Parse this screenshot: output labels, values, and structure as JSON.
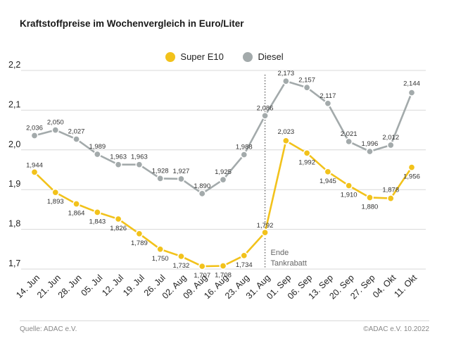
{
  "title": "Kraftstoffpreise im Wochenvergleich in Euro/Liter",
  "footer": {
    "source": "Quelle: ADAC e.V.",
    "copyright": "©ADAC e.V.  10.2022"
  },
  "colors": {
    "super": "#f2c21b",
    "diesel": "#a3aaab",
    "grid": "#d8d8d8",
    "marker_line": "#555555"
  },
  "chart_data": {
    "type": "line",
    "title": "Kraftstoffpreise im Wochenvergleich in Euro/Liter",
    "categories": [
      "14. Jun",
      "21. Jun",
      "28. Jun",
      "05. Jul",
      "12. Jul",
      "19. Jul",
      "26. Jul",
      "02. Aug",
      "09. Aug",
      "16. Aug",
      "23. Aug",
      "31. Aug",
      "01. Sep",
      "06. Sep",
      "13. Sep",
      "20. Sep",
      "27. Sep",
      "04. Okt",
      "11. Okt"
    ],
    "series": [
      {
        "name": "Super E10",
        "values": [
          1.944,
          1.893,
          1.864,
          1.843,
          1.826,
          1.789,
          1.75,
          1.732,
          1.707,
          1.708,
          1.734,
          1.792,
          2.023,
          1.992,
          1.945,
          1.91,
          1.88,
          1.878,
          1.956
        ]
      },
      {
        "name": "Diesel",
        "values": [
          2.036,
          2.05,
          2.027,
          1.989,
          1.963,
          1.963,
          1.928,
          1.927,
          1.89,
          1.925,
          1.988,
          2.086,
          2.173,
          2.157,
          2.117,
          2.021,
          1.996,
          2.012,
          2.144
        ]
      }
    ],
    "yticks": [
      "1,7",
      "1,8",
      "1,9",
      "2,0",
      "2,1",
      "2,2"
    ],
    "ylim": [
      1.7,
      2.2
    ],
    "grid": true,
    "legend_position": "top-center",
    "annotation": {
      "after_category": "31. Aug",
      "text": [
        "Ende",
        "Tankrabatt"
      ]
    }
  }
}
